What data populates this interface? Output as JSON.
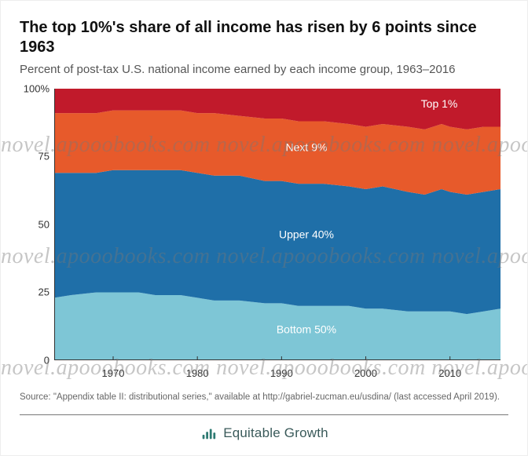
{
  "title": "The top 10%'s share of all income has risen by 6 points since 1963",
  "subtitle": "Percent of post-tax U.S. national income earned by each income group, 1963–2016",
  "chart": {
    "type": "stacked-area",
    "background_color": "#ffffff",
    "grid_color": "#d9d9d9",
    "axis_color": "#333333",
    "tick_fontsize": 13,
    "label_fontsize": 14,
    "x": {
      "min": 1963,
      "max": 2016,
      "ticks": [
        1970,
        1980,
        1990,
        2000,
        2010
      ]
    },
    "y": {
      "min": 0,
      "max": 100,
      "ticks": [
        0,
        25,
        50,
        75,
        100
      ],
      "top_tick_suffix": "%"
    },
    "years": [
      1963,
      1965,
      1968,
      1970,
      1973,
      1975,
      1978,
      1980,
      1982,
      1985,
      1988,
      1990,
      1992,
      1995,
      1998,
      2000,
      2002,
      2005,
      2007,
      2009,
      2010,
      2012,
      2014,
      2016
    ],
    "series": [
      {
        "name": "Bottom 50%",
        "label": "Bottom 50%",
        "color": "#7ec6d6",
        "label_color": "#ffffff",
        "label_xy": [
          1993,
          10
        ],
        "values": [
          23,
          24,
          25,
          25,
          25,
          24,
          24,
          23,
          22,
          22,
          21,
          21,
          20,
          20,
          20,
          19,
          19,
          18,
          18,
          18,
          18,
          17,
          18,
          19
        ]
      },
      {
        "name": "Upper 40%",
        "label": "Upper 40%",
        "color": "#1f6fa8",
        "label_color": "#ffffff",
        "label_xy": [
          1993,
          45
        ],
        "values": [
          46,
          45,
          44,
          45,
          45,
          46,
          46,
          46,
          46,
          46,
          45,
          45,
          45,
          45,
          44,
          44,
          45,
          44,
          43,
          45,
          44,
          44,
          44,
          44
        ]
      },
      {
        "name": "Next 9%",
        "label": "Next 9%",
        "color": "#e75a2b",
        "label_color": "#ffffff",
        "label_xy": [
          1993,
          77
        ],
        "values": [
          22,
          22,
          22,
          22,
          22,
          22,
          22,
          22,
          23,
          22,
          23,
          23,
          23,
          23,
          23,
          23,
          23,
          24,
          24,
          24,
          24,
          24,
          24,
          23
        ]
      },
      {
        "name": "Top 1%",
        "label": "Top 1%",
        "color": "#c11a2b",
        "label_color": "#ffffff",
        "label_xy": [
          2009,
          93
        ],
        "values": [
          9,
          9,
          9,
          8,
          8,
          8,
          8,
          9,
          9,
          10,
          11,
          11,
          12,
          12,
          13,
          14,
          13,
          14,
          15,
          13,
          14,
          15,
          14,
          14
        ]
      }
    ]
  },
  "source": "Source: \"Appendix table II: distributional series,\" available at http://gabriel-zucman.eu/usdina/ (last accessed April 2019).",
  "brand": "Equitable Growth",
  "brand_color": "#3a5a5a",
  "logo_color": "#2d7a72",
  "watermark_text": "novel.apooobooks.com novel.apooobooks.com novel.apooobooks.com"
}
